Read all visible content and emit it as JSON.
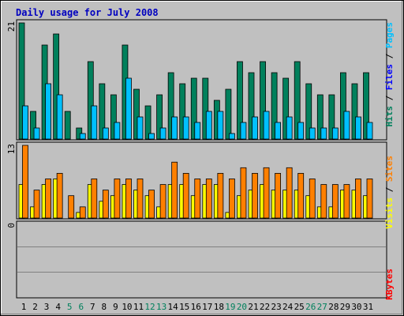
{
  "title": "Daily usage for July 2008",
  "colors": {
    "background": "#c0c0c0",
    "frame_light": "#ffffff",
    "frame_dark": "#808080",
    "title": "#0000c0",
    "hits": "#00805c",
    "files": "#00c0ff",
    "pages": "#00c0ff",
    "sites": "#ff8000",
    "visits": "#ffff00",
    "kbytes": "#ff0000",
    "weekday_label": "#000000",
    "weekend_label": "#00805c"
  },
  "chart_data": [
    {
      "type": "bar",
      "panel": "hits_files_pages",
      "legend": [
        "Pages",
        "Files",
        "Hits"
      ],
      "y_max_label": "21",
      "ylim": [
        0,
        21
      ],
      "categories": [
        "1",
        "2",
        "3",
        "4",
        "5",
        "6",
        "7",
        "8",
        "9",
        "10",
        "11",
        "12",
        "13",
        "14",
        "15",
        "16",
        "17",
        "18",
        "19",
        "20",
        "21",
        "22",
        "23",
        "24",
        "25",
        "26",
        "27",
        "28",
        "29",
        "30",
        "31"
      ],
      "weekend_days": [
        "5",
        "6",
        "12",
        "13",
        "19",
        "20",
        "26",
        "27"
      ],
      "series": [
        {
          "name": "Hits",
          "values": [
            21,
            5,
            17,
            19,
            5,
            2,
            14,
            10,
            8,
            17,
            9,
            6,
            8,
            12,
            10,
            11,
            11,
            7,
            9,
            14,
            12,
            14,
            12,
            11,
            14,
            10,
            8,
            8,
            12,
            10,
            12
          ]
        },
        {
          "name": "Files",
          "values": [
            6,
            2,
            10,
            8,
            0,
            1,
            6,
            2,
            3,
            11,
            4,
            1,
            2,
            4,
            4,
            3,
            5,
            5,
            1,
            3,
            4,
            5,
            3,
            4,
            3,
            2,
            2,
            2,
            5,
            4,
            3
          ]
        }
      ]
    },
    {
      "type": "bar",
      "panel": "sites_visits",
      "legend": [
        "Sites",
        "Visits"
      ],
      "y_max_label": "13",
      "ylim": [
        0,
        13
      ],
      "series": [
        {
          "name": "Visits",
          "values": [
            6,
            2,
            6,
            7,
            0,
            1,
            6,
            3,
            4,
            6,
            5,
            4,
            2,
            6,
            6,
            4,
            6,
            6,
            1,
            4,
            5,
            6,
            5,
            5,
            5,
            4,
            2,
            2,
            5,
            5,
            4
          ]
        },
        {
          "name": "Sites",
          "values": [
            13,
            5,
            7,
            8,
            4,
            2,
            7,
            5,
            7,
            7,
            7,
            5,
            6,
            10,
            8,
            7,
            7,
            8,
            7,
            9,
            8,
            9,
            8,
            9,
            8,
            7,
            6,
            6,
            6,
            7,
            7
          ]
        }
      ]
    },
    {
      "type": "bar",
      "panel": "kbytes",
      "legend": [
        "KBytes"
      ],
      "y_max_label": "0",
      "ylim": [
        0,
        1
      ],
      "series": [
        {
          "name": "KBytes",
          "values": [
            0,
            0,
            0,
            0,
            0,
            0,
            0,
            0,
            0,
            0,
            0,
            0,
            0,
            0,
            0,
            0,
            0,
            0,
            0,
            0,
            0,
            0,
            0,
            0,
            0,
            0,
            0,
            0,
            0,
            0,
            0
          ]
        }
      ]
    }
  ]
}
